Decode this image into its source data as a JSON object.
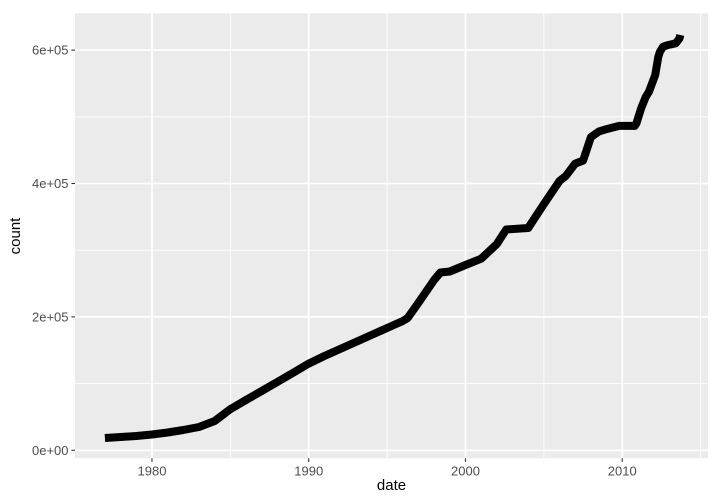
{
  "chart_data": {
    "type": "line",
    "title": "",
    "xlabel": "date",
    "ylabel": "count",
    "legend": "none",
    "grid": "on",
    "panel": {
      "background": "#EBEBEB",
      "grid_color": "#FFFFFF",
      "tick_color": "#333333"
    },
    "text_colors": {
      "tick_labels": "#4D4D4D",
      "axis_titles": "#000000"
    },
    "x_axis": {
      "domain": [
        1975.09,
        2015.47
      ],
      "major_ticks": [
        1980,
        1990,
        2000,
        2010
      ],
      "major_labels": [
        "1980",
        "1990",
        "2000",
        "2010"
      ],
      "minor_ticks": [
        1985,
        1995,
        2005,
        2015
      ]
    },
    "y_axis": {
      "domain": [
        -12000,
        655200
      ],
      "major_ticks": [
        0,
        200000,
        400000,
        600000
      ],
      "major_labels": [
        "0e+00",
        "2e+05",
        "4e+05",
        "6e+05"
      ],
      "minor_ticks": [
        100000,
        300000,
        500000
      ]
    },
    "series": [
      {
        "name": "count",
        "color": "#000000",
        "line_width": 8,
        "points": [
          [
            1977.0,
            18400
          ],
          [
            1978.0,
            19900
          ],
          [
            1979.0,
            21400
          ],
          [
            1980.0,
            23700
          ],
          [
            1981.0,
            26700
          ],
          [
            1982.0,
            30400
          ],
          [
            1983.0,
            34900
          ],
          [
            1984.0,
            43900
          ],
          [
            1985.0,
            61600
          ],
          [
            1986.0,
            75400
          ],
          [
            1987.0,
            88900
          ],
          [
            1988.0,
            102500
          ],
          [
            1989.0,
            116200
          ],
          [
            1990.0,
            130000
          ],
          [
            1991.0,
            141400
          ],
          [
            1992.0,
            151900
          ],
          [
            1993.0,
            162400
          ],
          [
            1994.0,
            172900
          ],
          [
            1995.0,
            183300
          ],
          [
            1996.0,
            193800
          ],
          [
            1996.3,
            198000
          ],
          [
            1997.0,
            221300
          ],
          [
            1998.0,
            255300
          ],
          [
            1998.4,
            266500
          ],
          [
            1999.0,
            268000
          ],
          [
            2000.0,
            277800
          ],
          [
            2001.0,
            287200
          ],
          [
            2002.0,
            309200
          ],
          [
            2002.6,
            331000
          ],
          [
            2004.0,
            333300
          ],
          [
            2005.0,
            369200
          ],
          [
            2006.0,
            403700
          ],
          [
            2006.4,
            411200
          ],
          [
            2007.0,
            429900
          ],
          [
            2007.5,
            434400
          ],
          [
            2008.0,
            469600
          ],
          [
            2008.5,
            477900
          ],
          [
            2009.0,
            481600
          ],
          [
            2009.8,
            486400
          ],
          [
            2010.8,
            486400
          ],
          [
            2010.9,
            490100
          ],
          [
            2011.2,
            512600
          ],
          [
            2011.5,
            530000
          ],
          [
            2011.7,
            537500
          ],
          [
            2012.1,
            562500
          ],
          [
            2012.3,
            590000
          ],
          [
            2012.4,
            597500
          ],
          [
            2012.6,
            605000
          ],
          [
            2012.9,
            607500
          ],
          [
            2013.4,
            610100
          ],
          [
            2013.65,
            617600
          ],
          [
            2013.7,
            622600
          ]
        ]
      }
    ]
  }
}
